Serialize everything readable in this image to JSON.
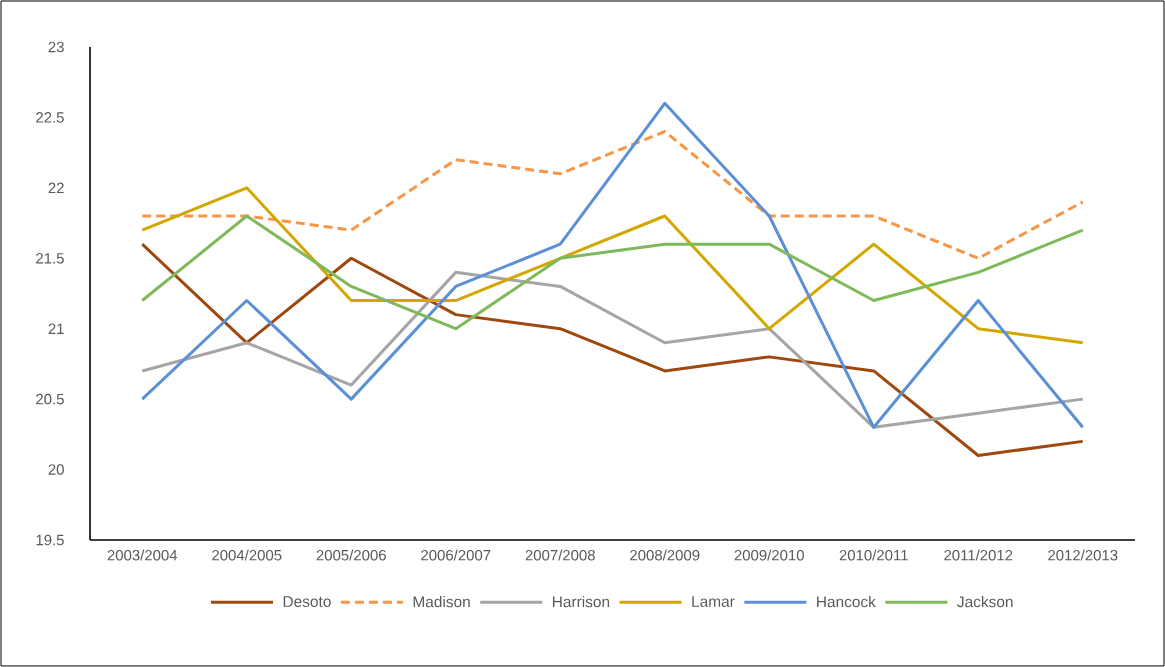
{
  "chart_data": {
    "type": "line",
    "categories": [
      "2003/2004",
      "2004/2005",
      "2005/2006",
      "2006/2007",
      "2007/2008",
      "2008/2009",
      "2009/2010",
      "2010/2011",
      "2011/2012",
      "2012/2013"
    ],
    "series": [
      {
        "name": "Desoto",
        "color": "#9e480e",
        "values": [
          21.6,
          20.9,
          21.5,
          21.1,
          21.0,
          20.7,
          20.8,
          20.7,
          20.1,
          20.2
        ]
      },
      {
        "name": "Madison",
        "color": "#f79646",
        "line_style": "dashed",
        "values": [
          21.8,
          21.8,
          21.7,
          22.2,
          22.1,
          22.4,
          21.8,
          21.8,
          21.5,
          21.9
        ]
      },
      {
        "name": "Harrison",
        "color": "#a5a5a5",
        "values": [
          20.7,
          20.9,
          20.6,
          21.4,
          21.3,
          20.9,
          21.0,
          20.3,
          20.4,
          20.5
        ]
      },
      {
        "name": "Lamar",
        "color": "#d4a600",
        "values": [
          21.7,
          22.0,
          21.2,
          21.2,
          21.5,
          21.8,
          21.0,
          21.6,
          21.0,
          20.9
        ]
      },
      {
        "name": "Hancock",
        "color": "#5b8fd6",
        "values": [
          20.5,
          21.2,
          20.5,
          21.3,
          21.6,
          22.6,
          21.8,
          20.3,
          21.2,
          20.3
        ]
      },
      {
        "name": "Jackson",
        "color": "#7fba5a",
        "values": [
          21.2,
          21.8,
          21.3,
          21.0,
          21.5,
          21.6,
          21.6,
          21.2,
          21.4,
          21.7
        ]
      }
    ],
    "ylim": [
      19.5,
      23
    ],
    "yticks": [
      19.5,
      20,
      20.5,
      21,
      21.5,
      22,
      22.5,
      23
    ],
    "grid": false,
    "legend": "bottom",
    "line_style": "solid"
  }
}
